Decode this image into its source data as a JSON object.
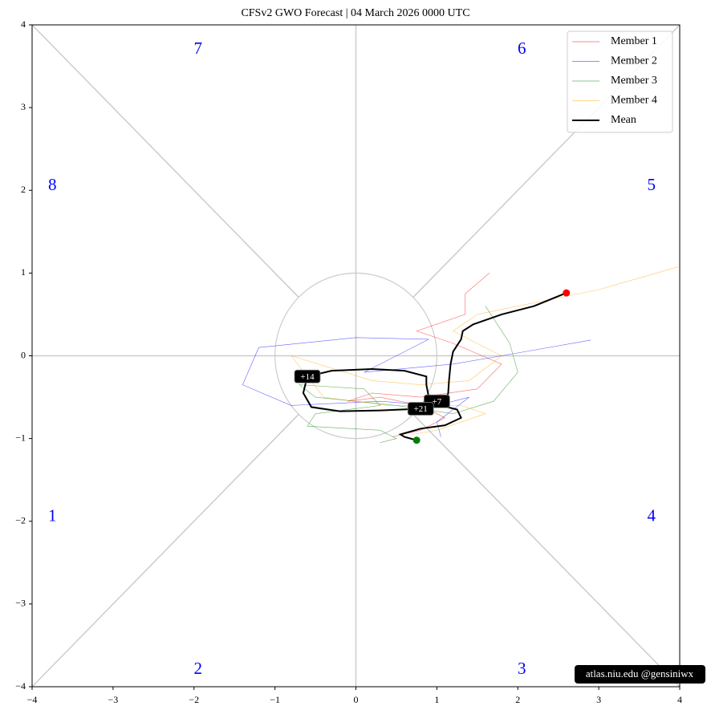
{
  "chart_data": {
    "type": "line",
    "title": "CFSv2 GWO Forecast   |   04  March  2026 0000 UTC",
    "xlim": [
      -4,
      4
    ],
    "ylim": [
      -4,
      4
    ],
    "xticks": [
      {
        "value": -4,
        "label": "−4"
      },
      {
        "value": -3,
        "label": "−3"
      },
      {
        "value": -2,
        "label": "−2"
      },
      {
        "value": -1,
        "label": "−1"
      },
      0,
      1,
      2,
      3,
      4
    ],
    "yticks": [
      {
        "value": -4,
        "label": "−4"
      },
      {
        "value": -3,
        "label": "−3"
      },
      {
        "value": -2,
        "label": "−2"
      },
      {
        "value": -1,
        "label": "−1"
      },
      0,
      1,
      2,
      3,
      4
    ],
    "phase_labels": [
      "1",
      "2",
      "3",
      "4",
      "5",
      "6",
      "7",
      "8"
    ],
    "annotations": [
      "+7",
      "+14",
      "+21"
    ],
    "watermark": "atlas.niu.edu  @gensiniwx",
    "legend": "upper right",
    "series": [
      {
        "name": "Member 1",
        "color": "#ff0000",
        "x": [
          1.65,
          1.35,
          1.35,
          0.75,
          1.2,
          1.8,
          1.5,
          0.8,
          0.2,
          -0.1,
          0.3,
          0.8,
          1.1,
          0.8,
          0.45
        ],
        "values": [
          1.0,
          0.75,
          0.5,
          0.3,
          0.15,
          -0.1,
          -0.4,
          -0.5,
          -0.45,
          -0.55,
          -0.5,
          -0.6,
          -0.75,
          -0.9,
          -0.98
        ]
      },
      {
        "name": "Member 2",
        "color": "#0000ff",
        "x": [
          2.9,
          1.8,
          1.2,
          0.1,
          0.9,
          0.0,
          -1.2,
          -1.4,
          -0.8,
          0.3,
          1.0,
          1.4,
          1.0,
          1.05
        ],
        "values": [
          0.19,
          0.0,
          -0.1,
          -0.2,
          0.2,
          0.22,
          0.1,
          -0.35,
          -0.6,
          -0.55,
          -0.6,
          -0.5,
          -0.8,
          -0.98
        ]
      },
      {
        "name": "Member 3",
        "color": "#008000",
        "x": [
          1.6,
          1.9,
          2.0,
          1.7,
          1.2,
          0.5,
          -0.5,
          -0.7,
          0.1,
          0.3,
          -0.5,
          -0.6,
          0.3,
          0.5,
          0.3
        ],
        "values": [
          0.6,
          0.15,
          -0.2,
          -0.55,
          -0.7,
          -0.6,
          -0.5,
          -0.35,
          -0.4,
          -0.6,
          -0.7,
          -0.85,
          -0.9,
          -1.0,
          -1.05
        ]
      },
      {
        "name": "Member 4",
        "color": "#ffa500",
        "x": [
          4.0,
          3.0,
          1.5,
          1.2,
          1.8,
          1.4,
          0.8,
          0.2,
          -0.8,
          -0.4,
          0.4,
          1.3,
          1.6,
          1.0,
          0.7
        ],
        "values": [
          1.08,
          0.8,
          0.5,
          0.3,
          0.0,
          -0.3,
          -0.35,
          -0.3,
          0.0,
          -0.5,
          -0.6,
          -0.6,
          -0.7,
          -0.9,
          -0.95
        ]
      },
      {
        "name": "Mean",
        "color": "#000000",
        "x": [
          2.6,
          2.2,
          1.8,
          1.45,
          1.32,
          1.3,
          1.2,
          1.17,
          1.15,
          1.14,
          1.12,
          1.0,
          0.9,
          0.87,
          0.87,
          0.6,
          0.2,
          -0.3,
          -0.6,
          -0.65,
          -0.55,
          -0.2,
          0.3,
          0.8,
          1.05,
          1.25,
          1.3,
          1.1,
          0.8,
          0.55,
          0.6,
          0.75
        ],
        "values": [
          0.76,
          0.6,
          0.5,
          0.38,
          0.3,
          0.2,
          0.05,
          -0.1,
          -0.3,
          -0.45,
          -0.55,
          -0.55,
          -0.5,
          -0.35,
          -0.25,
          -0.18,
          -0.16,
          -0.18,
          -0.25,
          -0.45,
          -0.62,
          -0.67,
          -0.66,
          -0.64,
          -0.6,
          -0.65,
          -0.75,
          -0.84,
          -0.88,
          -0.95,
          -0.98,
          -1.02
        ]
      }
    ]
  }
}
